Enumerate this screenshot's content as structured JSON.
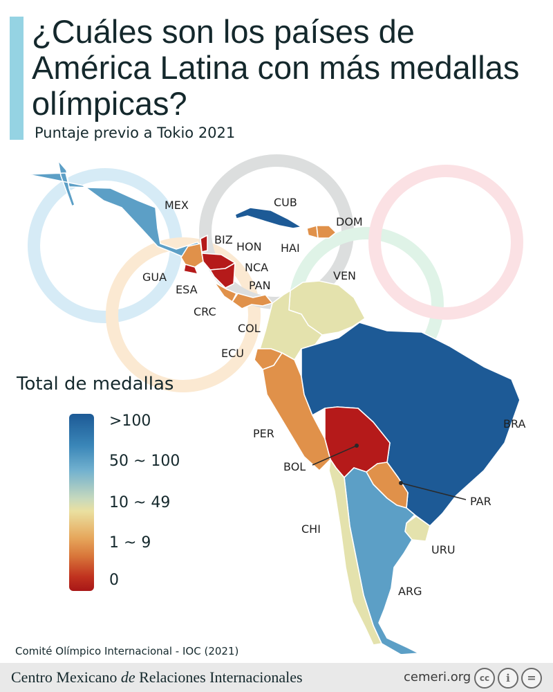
{
  "title": "¿Cuáles son los países de América Latina con más medallas olímpicas?",
  "subtitle": "Puntaje previo a Tokio 2021",
  "legend": {
    "title": "Total de medallas",
    "items": [
      {
        "label": ">100",
        "color": "#1d5a96"
      },
      {
        "label": "50 ~ 100",
        "color": "#5c9fc6"
      },
      {
        "label": "10 ~ 49",
        "color": "#e4e2ad"
      },
      {
        "label": "1 ~ 9",
        "color": "#e0914a"
      },
      {
        "label": "0",
        "color": "#b51a1a"
      }
    ]
  },
  "countries": {
    "MEX": {
      "label": "MEX",
      "category": "50 ~ 100"
    },
    "CUB": {
      "label": "CUB",
      "category": ">100"
    },
    "DOM": {
      "label": "DOM",
      "category": "1 ~ 9"
    },
    "BIZ": {
      "label": "BIZ",
      "category": "0"
    },
    "HON": {
      "label": "HON",
      "category": "0"
    },
    "HAI": {
      "label": "HAI",
      "category": "1 ~ 9"
    },
    "GUA": {
      "label": "GUA",
      "category": "1 ~ 9"
    },
    "ESA": {
      "label": "ESA",
      "category": "0"
    },
    "NCA": {
      "label": "NCA",
      "category": "0"
    },
    "PAN": {
      "label": "PAN",
      "category": "1 ~ 9"
    },
    "VEN": {
      "label": "VEN",
      "category": "10 ~ 49"
    },
    "CRC": {
      "label": "CRC",
      "category": "1 ~ 9"
    },
    "COL": {
      "label": "COL",
      "category": "10 ~ 49"
    },
    "ECU": {
      "label": "ECU",
      "category": "1 ~ 9"
    },
    "BRA": {
      "label": "BRA",
      "category": ">100"
    },
    "PER": {
      "label": "PER",
      "category": "1 ~ 9"
    },
    "BOL": {
      "label": "BOL",
      "category": "0"
    },
    "PAR": {
      "label": "PAR",
      "category": "1 ~ 9"
    },
    "CHI": {
      "label": "CHI",
      "category": "10 ~ 49"
    },
    "URU": {
      "label": "URU",
      "category": "10 ~ 49"
    },
    "ARG": {
      "label": "ARG",
      "category": "50 ~ 100"
    }
  },
  "rings": [
    "#d6ebf6",
    "#fbe9d2",
    "#dcdede",
    "#dff3e7",
    "#fbe1e4"
  ],
  "source": "Comité Olímpico Internacional -  IOC (2021)",
  "footer": {
    "org_before": "Centro Mexicano ",
    "org_italic": "de",
    "org_after": " Relaciones Internacionales",
    "url": "cemeri.org",
    "icons": [
      "cc-icon",
      "attribution-icon",
      "no-derivatives-icon"
    ]
  }
}
